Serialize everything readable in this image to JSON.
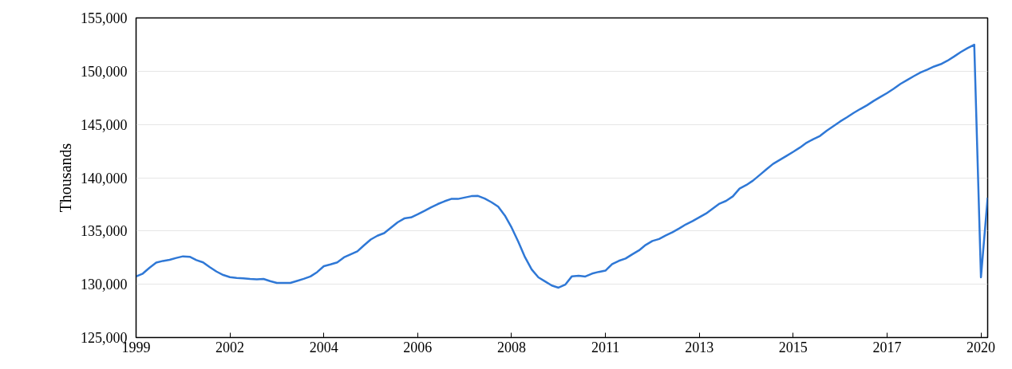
{
  "chart_data": {
    "type": "line",
    "ylabel": "Thousands",
    "categories": [
      "1999",
      null,
      null,
      null,
      null,
      null,
      null,
      null,
      null,
      null,
      null,
      null,
      null,
      null,
      "2002",
      null,
      null,
      null,
      null,
      null,
      null,
      null,
      null,
      null,
      null,
      null,
      null,
      null,
      "2004",
      null,
      null,
      null,
      null,
      null,
      null,
      null,
      null,
      null,
      null,
      null,
      null,
      null,
      "2006",
      null,
      null,
      null,
      null,
      null,
      null,
      null,
      null,
      null,
      null,
      null,
      null,
      null,
      "2008",
      null,
      null,
      null,
      null,
      null,
      null,
      null,
      null,
      null,
      null,
      null,
      null,
      null,
      "2011",
      null,
      null,
      null,
      null,
      null,
      null,
      null,
      null,
      null,
      null,
      null,
      null,
      null,
      "2013",
      null,
      null,
      null,
      null,
      null,
      null,
      null,
      null,
      null,
      null,
      null,
      null,
      null,
      "2015",
      null,
      null,
      null,
      null,
      null,
      null,
      null,
      null,
      null,
      null,
      null,
      null,
      null,
      "2017",
      null,
      null,
      null,
      null,
      null,
      null,
      null,
      null,
      null,
      null,
      null,
      null,
      null,
      "2020",
      null
    ],
    "series": [
      {
        "color": "#2f78d6",
        "values": [
          130730,
          131000,
          131550,
          132030,
          132190,
          132290,
          132470,
          132620,
          132580,
          132270,
          132050,
          131600,
          131190,
          130870,
          130670,
          130600,
          130550,
          130490,
          130470,
          130500,
          130290,
          130120,
          130120,
          130120,
          130310,
          130510,
          130730,
          131140,
          131700,
          131860,
          132050,
          132520,
          132810,
          133090,
          133660,
          134200,
          134560,
          134800,
          135310,
          135810,
          136180,
          136270,
          136570,
          136890,
          137220,
          137530,
          137790,
          138010,
          138010,
          138140,
          138270,
          138290,
          138040,
          137700,
          137290,
          136450,
          135330,
          134000,
          132540,
          131390,
          130650,
          130270,
          129880,
          129680,
          129960,
          130750,
          130800,
          130730,
          131000,
          131160,
          131280,
          131890,
          132200,
          132420,
          132810,
          133180,
          133690,
          134060,
          134250,
          134580,
          134890,
          135240,
          135620,
          135930,
          136290,
          136640,
          137100,
          137560,
          137830,
          138250,
          138980,
          139310,
          139730,
          140250,
          140780,
          141300,
          141670,
          142050,
          142430,
          142830,
          143290,
          143620,
          143920,
          144420,
          144850,
          145280,
          145670,
          146080,
          146450,
          146800,
          147210,
          147580,
          147950,
          148360,
          148810,
          149170,
          149540,
          149880,
          150150,
          150440,
          150660,
          150980,
          151380,
          151800,
          152170,
          152490,
          130650,
          138130
        ]
      }
    ],
    "ylim": [
      125000,
      155000
    ],
    "yticks": [
      {
        "value": 125000,
        "label": "125,000"
      },
      {
        "value": 130000,
        "label": "130,000"
      },
      {
        "value": 135000,
        "label": "135,000"
      },
      {
        "value": 140000,
        "label": "140,000"
      },
      {
        "value": 145000,
        "label": "145,000"
      },
      {
        "value": 150000,
        "label": "150,000"
      },
      {
        "value": 155000,
        "label": "155,000"
      }
    ],
    "grid": "y",
    "marker": "none",
    "line_style": "solid"
  }
}
